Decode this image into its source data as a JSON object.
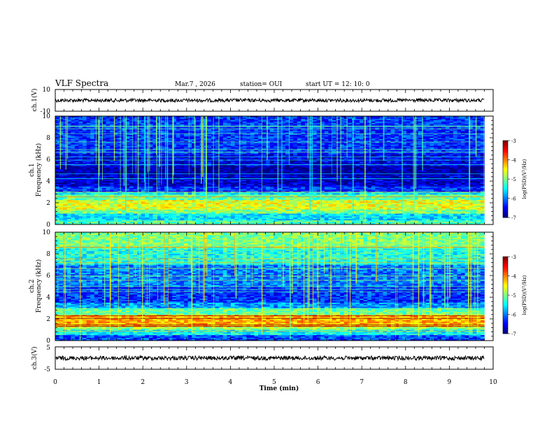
{
  "header": {
    "title": "VLF Spectra",
    "date": "Mar.7 , 2026",
    "station": "station= OUI",
    "start": "start  UT =   12: 10: 0"
  },
  "chart_data": [
    {
      "id": "ch1-waveform",
      "type": "line",
      "ylabel": "ch.1(V)",
      "ylim": [
        -10,
        10
      ],
      "yticks": [
        "10",
        "-10"
      ],
      "xlim": [
        0,
        10
      ],
      "trace_level": 0,
      "trace_end": 9.8,
      "trace_color": "#000000"
    },
    {
      "id": "ch1-spectrogram",
      "type": "heatmap",
      "ylabel_line1": "ch.1",
      "ylabel_line2": "Frequency (kHz)",
      "ylim": [
        0,
        10
      ],
      "yticks": [
        "0",
        "2",
        "4",
        "6",
        "8",
        "10"
      ],
      "xlim": [
        0,
        10
      ],
      "data_end": 9.8,
      "colorbar": {
        "label": "log(PSD)(V²/Hz)",
        "range": [
          -7,
          -3
        ],
        "ticks": [
          "-3",
          "-4",
          "-5",
          "-6",
          "-7"
        ]
      },
      "bands": [
        {
          "from": 0.0,
          "to": 0.4,
          "level": -5.2
        },
        {
          "from": 0.4,
          "to": 1.0,
          "level": -5.6
        },
        {
          "from": 1.0,
          "to": 1.4,
          "level": -5.0
        },
        {
          "from": 1.4,
          "to": 2.2,
          "level": -4.6
        },
        {
          "from": 2.2,
          "to": 2.7,
          "level": -5.1
        },
        {
          "from": 2.7,
          "to": 3.0,
          "level": -5.6
        },
        {
          "from": 3.0,
          "to": 3.5,
          "level": -6.3
        },
        {
          "from": 3.5,
          "to": 4.6,
          "level": -6.7
        },
        {
          "from": 4.6,
          "to": 5.4,
          "level": -6.9
        },
        {
          "from": 5.4,
          "to": 6.5,
          "level": -6.6
        },
        {
          "from": 6.5,
          "to": 10.0,
          "level": -6.3
        }
      ]
    },
    {
      "id": "ch2-spectrogram",
      "type": "heatmap",
      "ylabel_line1": "ch.2",
      "ylabel_line2": "Frequency (kHz)",
      "ylim": [
        0,
        10
      ],
      "yticks": [
        "0",
        "2",
        "4",
        "6",
        "8",
        "10"
      ],
      "xlim": [
        0,
        10
      ],
      "data_end": 9.8,
      "colorbar": {
        "label": "log(PSD)(V²/Hz)",
        "range": [
          -7,
          -3
        ],
        "ticks": [
          "-3",
          "-4",
          "-5",
          "-6",
          "-7"
        ]
      },
      "bands": [
        {
          "from": 0.0,
          "to": 0.5,
          "level": -6.2
        },
        {
          "from": 0.5,
          "to": 1.0,
          "level": -5.5
        },
        {
          "from": 1.0,
          "to": 1.3,
          "level": -4.9
        },
        {
          "from": 1.3,
          "to": 2.4,
          "level": -4.2
        },
        {
          "from": 2.4,
          "to": 3.0,
          "level": -5.1
        },
        {
          "from": 3.0,
          "to": 3.5,
          "level": -5.9
        },
        {
          "from": 3.5,
          "to": 5.0,
          "level": -6.3
        },
        {
          "from": 5.0,
          "to": 7.0,
          "level": -6.0
        },
        {
          "from": 7.0,
          "to": 8.5,
          "level": -5.4
        },
        {
          "from": 8.5,
          "to": 10.0,
          "level": -5.0
        }
      ]
    },
    {
      "id": "ch3-waveform",
      "type": "line",
      "ylabel": "ch.3(V)",
      "ylim": [
        -5,
        5
      ],
      "yticks": [
        "5",
        "-5"
      ],
      "xlim": [
        0,
        10
      ],
      "trace_level": 0,
      "trace_end": 9.8,
      "trace_color": "#000000",
      "xlabel": "Time (min)",
      "xticks": [
        "0",
        "1",
        "2",
        "3",
        "4",
        "5",
        "6",
        "7",
        "8",
        "9",
        "10"
      ]
    }
  ]
}
